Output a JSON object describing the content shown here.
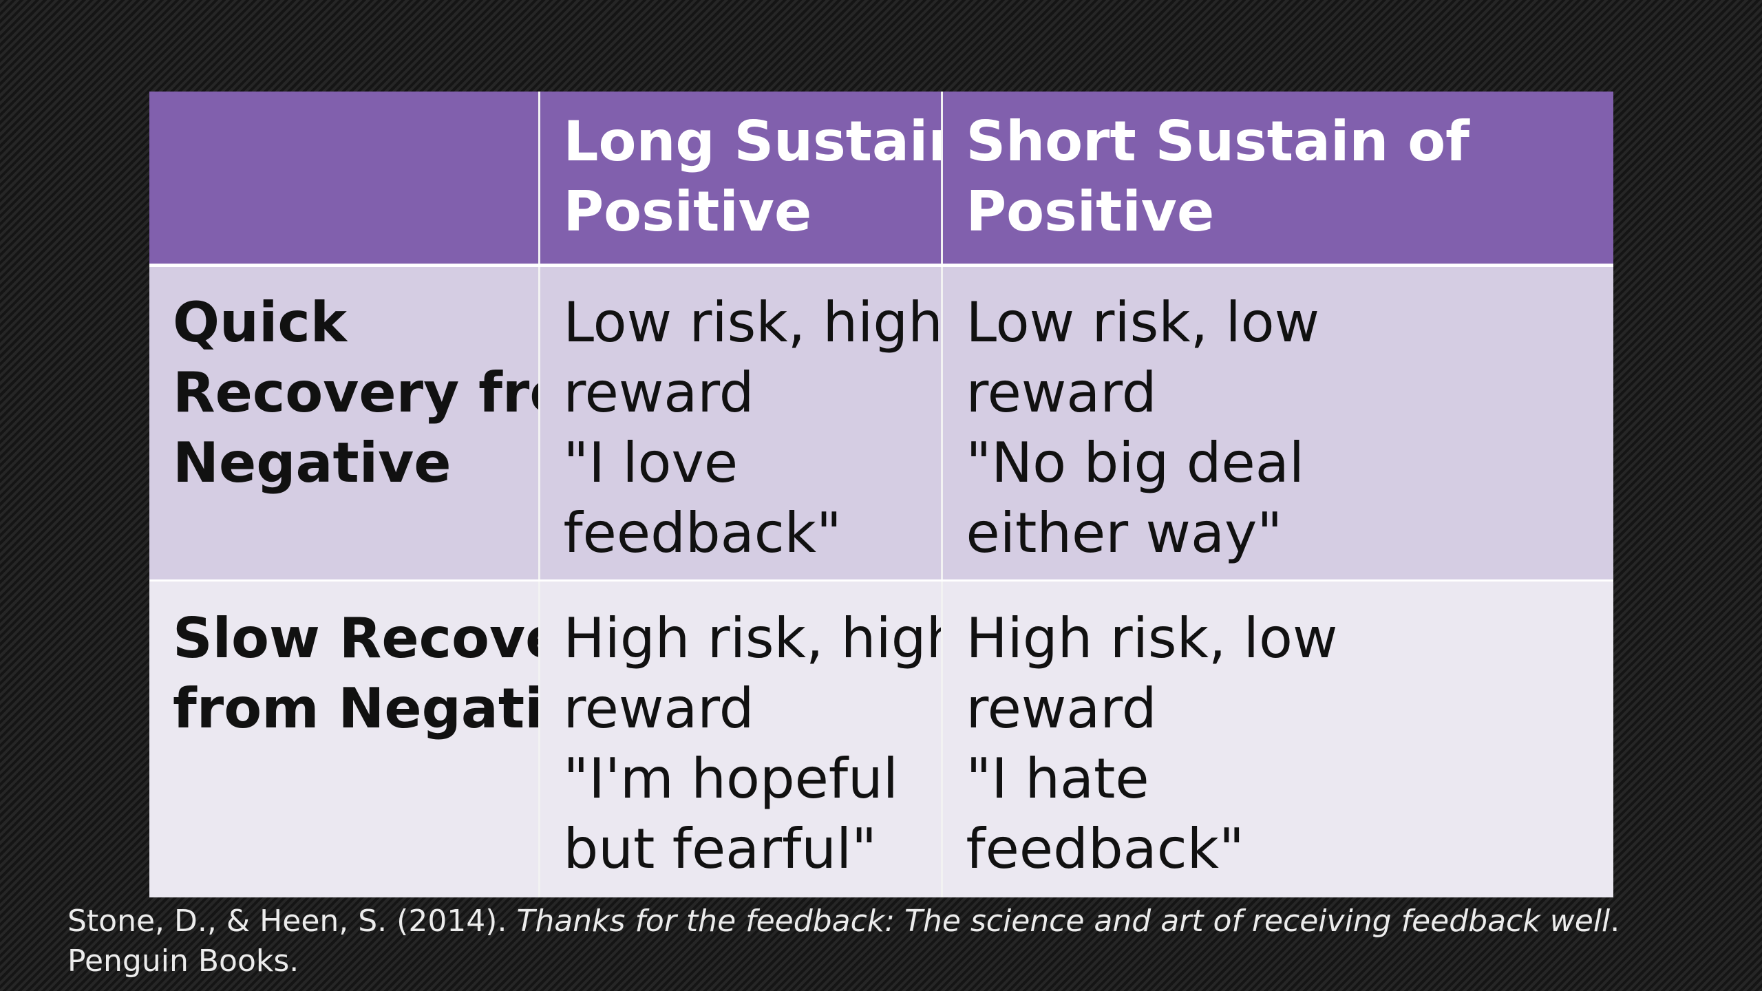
{
  "table": {
    "header": {
      "corner": "",
      "col1": [
        "Long Sustain of",
        "Positive"
      ],
      "col2": [
        "Short Sustain of",
        "Positive"
      ]
    },
    "rows": [
      {
        "label": [
          "Quick",
          "Recovery from",
          "Negative"
        ],
        "col1": [
          "Low risk, high",
          "reward",
          "\"I love",
          "feedback\""
        ],
        "col2": [
          "Low risk, low",
          "reward",
          "\"No big deal",
          "either way\""
        ]
      },
      {
        "label": [
          "Slow Recovery",
          "from Negative"
        ],
        "col1": [
          "High risk, high",
          "reward",
          "\"I'm hopeful",
          "but fearful\""
        ],
        "col2": [
          "High risk, low",
          "reward",
          "\"I hate",
          "feedback\""
        ]
      }
    ]
  },
  "citation": {
    "authors": "Stone, D., & Heen, S. (2014). ",
    "title": "Thanks for the feedback: The science and art of receiving feedback well",
    "publisher": ". Penguin Books."
  },
  "colors": {
    "header_purple": "#8160ad",
    "row1_lavender": "#d5cde3",
    "row2_light": "#ebe8f1",
    "background": "#1c1c1c"
  }
}
